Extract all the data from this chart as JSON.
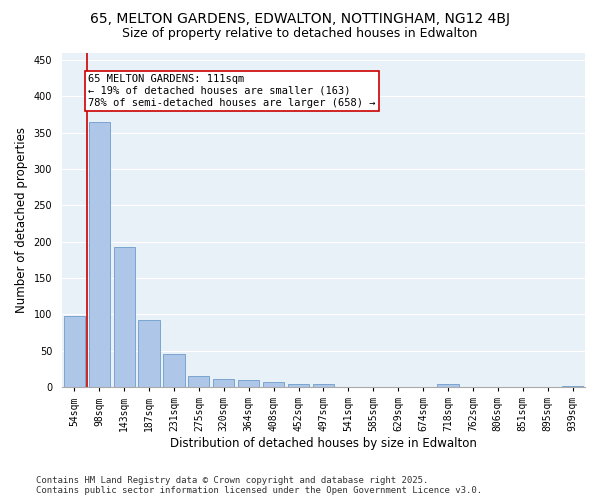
{
  "title_line1": "65, MELTON GARDENS, EDWALTON, NOTTINGHAM, NG12 4BJ",
  "title_line2": "Size of property relative to detached houses in Edwalton",
  "xlabel": "Distribution of detached houses by size in Edwalton",
  "ylabel": "Number of detached properties",
  "categories": [
    "54sqm",
    "98sqm",
    "143sqm",
    "187sqm",
    "231sqm",
    "275sqm",
    "320sqm",
    "364sqm",
    "408sqm",
    "452sqm",
    "497sqm",
    "541sqm",
    "585sqm",
    "629sqm",
    "674sqm",
    "718sqm",
    "762sqm",
    "806sqm",
    "851sqm",
    "895sqm",
    "939sqm"
  ],
  "values": [
    98,
    365,
    193,
    92,
    45,
    15,
    11,
    10,
    7,
    5,
    4,
    0,
    0,
    0,
    0,
    4,
    0,
    0,
    0,
    0,
    1
  ],
  "bar_color": "#aec6e8",
  "bar_edge_color": "#5a8fc2",
  "vline_color": "#cc0000",
  "annotation_text": "65 MELTON GARDENS: 111sqm\n← 19% of detached houses are smaller (163)\n78% of semi-detached houses are larger (658) →",
  "annotation_box_color": "#ffffff",
  "annotation_box_edge_color": "#cc0000",
  "ylim": [
    0,
    460
  ],
  "yticks": [
    0,
    50,
    100,
    150,
    200,
    250,
    300,
    350,
    400,
    450
  ],
  "background_color": "#e8f0f8",
  "grid_color": "#ffffff",
  "footer_line1": "Contains HM Land Registry data © Crown copyright and database right 2025.",
  "footer_line2": "Contains public sector information licensed under the Open Government Licence v3.0.",
  "title_fontsize": 10,
  "subtitle_fontsize": 9,
  "axis_label_fontsize": 8.5,
  "tick_fontsize": 7,
  "annotation_fontsize": 7.5,
  "footer_fontsize": 6.5
}
